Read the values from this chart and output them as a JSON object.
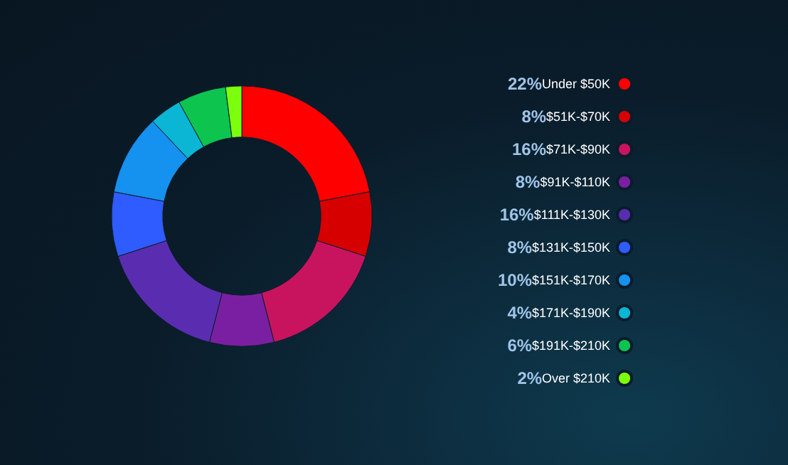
{
  "chart_data": {
    "type": "donut",
    "categories": [
      "Under $50K",
      "$51K-$70K",
      "$71K-$90K",
      "$91K-$110K",
      "$111K-$130K",
      "$131K-$150K",
      "$151K-$170K",
      "$171K-$190K",
      "$191K-$210K",
      "Over $210K"
    ],
    "values": [
      22,
      8,
      16,
      8,
      16,
      8,
      10,
      4,
      6,
      2
    ],
    "value_labels": [
      "22%",
      "8%",
      "16%",
      "8%",
      "16%",
      "8%",
      "10%",
      "4%",
      "6%",
      "2%"
    ],
    "colors": [
      "#ff0000",
      "#d60000",
      "#c8145f",
      "#7b1fa2",
      "#5a2db0",
      "#2f5cff",
      "#1591f0",
      "#0bb5d4",
      "#0dc44f",
      "#7cff0d"
    ],
    "legend": "right"
  }
}
